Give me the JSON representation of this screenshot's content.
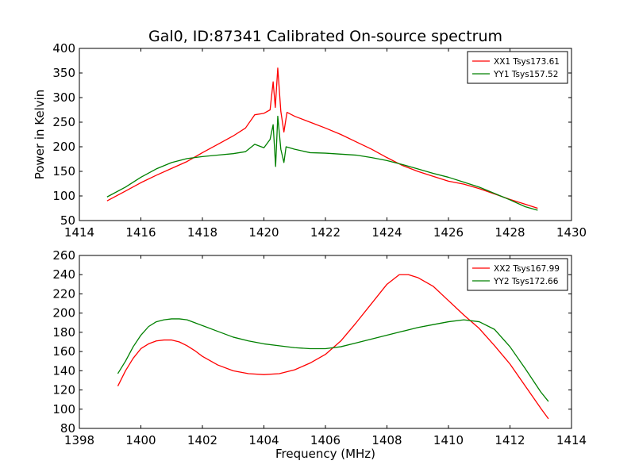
{
  "title": "Gal0, ID:87341 Calibrated On-source spectrum",
  "chart_data": [
    {
      "type": "line",
      "ylabel": "Power in Kelvin",
      "xlabel": "",
      "xlim": [
        1414,
        1430
      ],
      "ylim": [
        50,
        400
      ],
      "xticks": [
        1414,
        1416,
        1418,
        1420,
        1422,
        1424,
        1426,
        1428,
        1430
      ],
      "yticks": [
        50,
        100,
        150,
        200,
        250,
        300,
        350,
        400
      ],
      "legend_position": "top-right",
      "series": [
        {
          "name": "XX1 Tsys173.61",
          "color": "#ff0000",
          "points": [
            [
              1414.9,
              90
            ],
            [
              1415.5,
              110
            ],
            [
              1416.0,
              127
            ],
            [
              1416.5,
              142
            ],
            [
              1417.0,
              156
            ],
            [
              1417.5,
              170
            ],
            [
              1418.0,
              188
            ],
            [
              1418.5,
              205
            ],
            [
              1419.0,
              222
            ],
            [
              1419.4,
              238
            ],
            [
              1419.7,
              265
            ],
            [
              1420.0,
              268
            ],
            [
              1420.2,
              275
            ],
            [
              1420.3,
              332
            ],
            [
              1420.37,
              280
            ],
            [
              1420.45,
              360
            ],
            [
              1420.55,
              272
            ],
            [
              1420.65,
              230
            ],
            [
              1420.75,
              270
            ],
            [
              1421.0,
              262
            ],
            [
              1421.5,
              250
            ],
            [
              1422.0,
              238
            ],
            [
              1422.5,
              225
            ],
            [
              1423.0,
              210
            ],
            [
              1423.5,
              195
            ],
            [
              1424.0,
              178
            ],
            [
              1424.5,
              162
            ],
            [
              1425.0,
              150
            ],
            [
              1425.5,
              140
            ],
            [
              1426.0,
              130
            ],
            [
              1426.5,
              124
            ],
            [
              1427.0,
              115
            ],
            [
              1427.5,
              104
            ],
            [
              1428.0,
              93
            ],
            [
              1428.5,
              83
            ],
            [
              1428.9,
              75
            ]
          ]
        },
        {
          "name": "YY1 Tsys157.52",
          "color": "#008000",
          "points": [
            [
              1414.9,
              98
            ],
            [
              1415.5,
              118
            ],
            [
              1416.0,
              138
            ],
            [
              1416.5,
              155
            ],
            [
              1417.0,
              168
            ],
            [
              1417.5,
              176
            ],
            [
              1418.0,
              180
            ],
            [
              1418.5,
              183
            ],
            [
              1419.0,
              186
            ],
            [
              1419.4,
              190
            ],
            [
              1419.7,
              205
            ],
            [
              1420.0,
              198
            ],
            [
              1420.2,
              215
            ],
            [
              1420.3,
              245
            ],
            [
              1420.38,
              160
            ],
            [
              1420.45,
              262
            ],
            [
              1420.55,
              195
            ],
            [
              1420.65,
              168
            ],
            [
              1420.72,
              200
            ],
            [
              1421.0,
              195
            ],
            [
              1421.5,
              188
            ],
            [
              1422.0,
              187
            ],
            [
              1422.5,
              185
            ],
            [
              1423.0,
              183
            ],
            [
              1423.5,
              178
            ],
            [
              1424.0,
              172
            ],
            [
              1424.5,
              164
            ],
            [
              1425.0,
              155
            ],
            [
              1425.5,
              146
            ],
            [
              1426.0,
              138
            ],
            [
              1426.5,
              128
            ],
            [
              1427.0,
              118
            ],
            [
              1427.5,
              105
            ],
            [
              1428.0,
              92
            ],
            [
              1428.5,
              78
            ],
            [
              1428.9,
              71
            ]
          ]
        }
      ]
    },
    {
      "type": "line",
      "ylabel": "",
      "xlabel": "Frequency (MHz)",
      "xlim": [
        1398,
        1414
      ],
      "ylim": [
        80,
        260
      ],
      "xticks": [
        1398,
        1400,
        1402,
        1404,
        1406,
        1408,
        1410,
        1412,
        1414
      ],
      "yticks": [
        80,
        100,
        120,
        140,
        160,
        180,
        200,
        220,
        240,
        260
      ],
      "legend_position": "top-right",
      "series": [
        {
          "name": "XX2 Tsys167.99",
          "color": "#ff0000",
          "points": [
            [
              1399.25,
              124
            ],
            [
              1399.5,
              140
            ],
            [
              1399.75,
              153
            ],
            [
              1400.0,
              163
            ],
            [
              1400.25,
              168
            ],
            [
              1400.5,
              171
            ],
            [
              1400.75,
              172
            ],
            [
              1401.0,
              172
            ],
            [
              1401.25,
              170
            ],
            [
              1401.5,
              166
            ],
            [
              1401.75,
              161
            ],
            [
              1402.0,
              155
            ],
            [
              1402.5,
              146
            ],
            [
              1403.0,
              140
            ],
            [
              1403.5,
              137
            ],
            [
              1404.0,
              136
            ],
            [
              1404.5,
              137
            ],
            [
              1405.0,
              141
            ],
            [
              1405.5,
              148
            ],
            [
              1406.0,
              157
            ],
            [
              1406.5,
              171
            ],
            [
              1407.0,
              190
            ],
            [
              1407.5,
              210
            ],
            [
              1408.0,
              230
            ],
            [
              1408.4,
              240
            ],
            [
              1408.7,
              240
            ],
            [
              1409.0,
              237
            ],
            [
              1409.5,
              228
            ],
            [
              1410.0,
              213
            ],
            [
              1410.5,
              198
            ],
            [
              1411.0,
              184
            ],
            [
              1411.5,
              166
            ],
            [
              1412.0,
              147
            ],
            [
              1412.5,
              124
            ],
            [
              1413.0,
              101
            ],
            [
              1413.25,
              90
            ]
          ]
        },
        {
          "name": "YY2 Tsys172.66",
          "color": "#008000",
          "points": [
            [
              1399.25,
              137
            ],
            [
              1399.5,
              150
            ],
            [
              1399.75,
              165
            ],
            [
              1400.0,
              177
            ],
            [
              1400.25,
              186
            ],
            [
              1400.5,
              191
            ],
            [
              1400.75,
              193
            ],
            [
              1401.0,
              194
            ],
            [
              1401.25,
              194
            ],
            [
              1401.5,
              193
            ],
            [
              1401.75,
              190
            ],
            [
              1402.0,
              187
            ],
            [
              1402.5,
              181
            ],
            [
              1403.0,
              175
            ],
            [
              1403.5,
              171
            ],
            [
              1404.0,
              168
            ],
            [
              1404.5,
              166
            ],
            [
              1405.0,
              164
            ],
            [
              1405.5,
              163
            ],
            [
              1406.0,
              163
            ],
            [
              1406.5,
              165
            ],
            [
              1407.0,
              169
            ],
            [
              1407.5,
              173
            ],
            [
              1408.0,
              177
            ],
            [
              1408.5,
              181
            ],
            [
              1409.0,
              185
            ],
            [
              1409.5,
              188
            ],
            [
              1410.0,
              191
            ],
            [
              1410.5,
              193
            ],
            [
              1411.0,
              191
            ],
            [
              1411.5,
              183
            ],
            [
              1412.0,
              165
            ],
            [
              1412.5,
              142
            ],
            [
              1413.0,
              118
            ],
            [
              1413.25,
              108
            ]
          ]
        }
      ]
    }
  ]
}
